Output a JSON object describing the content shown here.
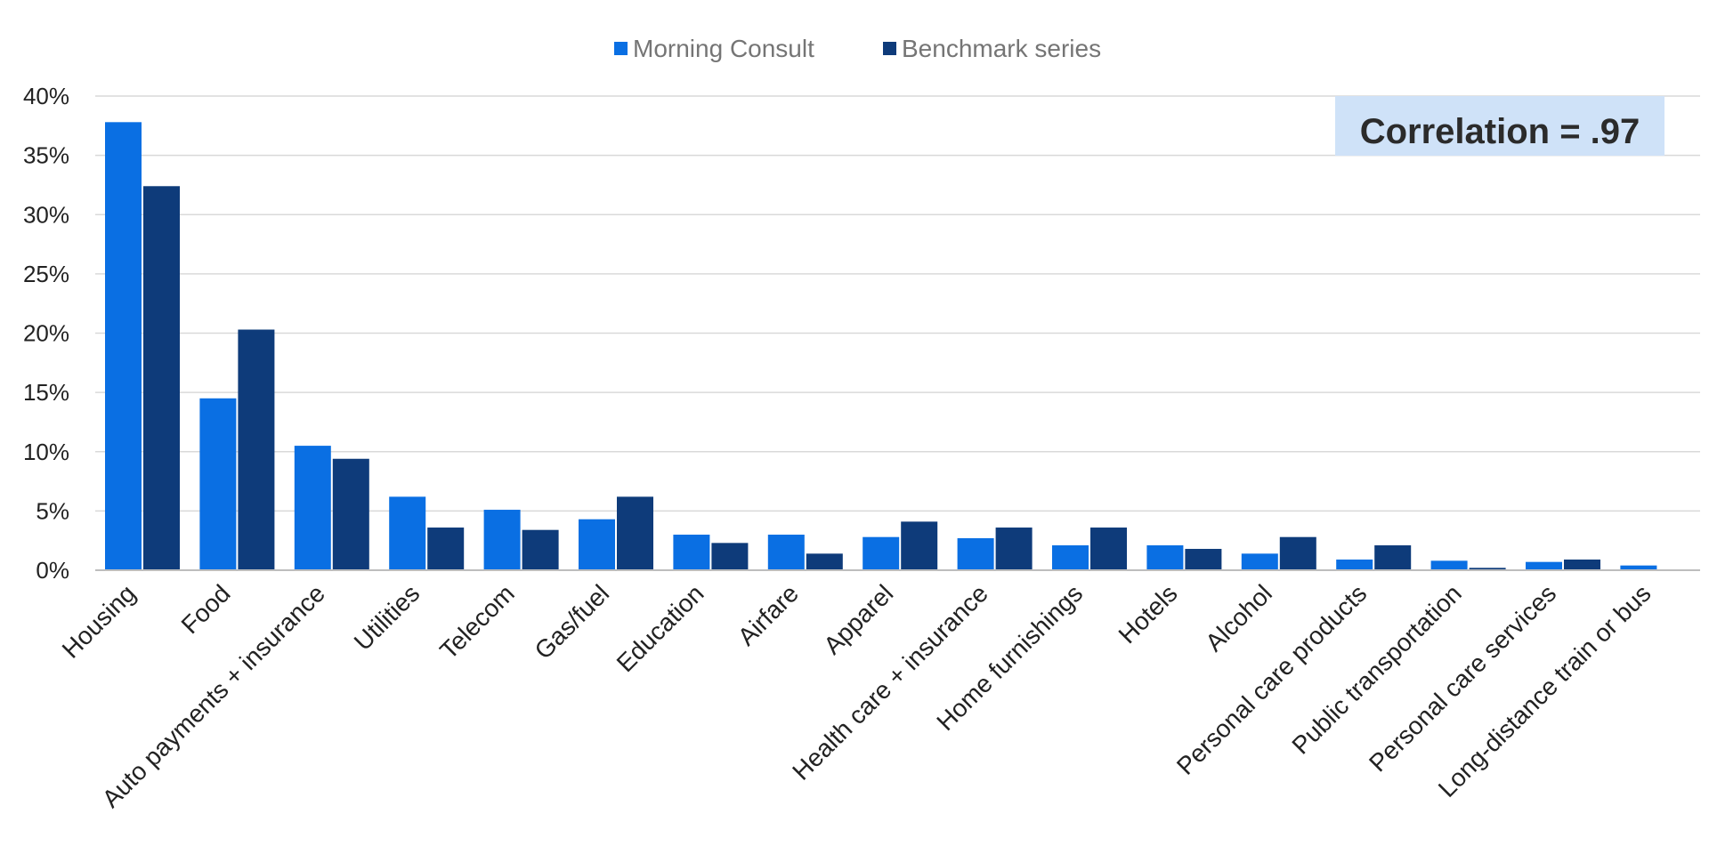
{
  "chart_data": {
    "type": "bar",
    "title": "",
    "xlabel": "",
    "ylabel": "",
    "ylim": [
      0,
      40
    ],
    "yticks": [
      0,
      5,
      10,
      15,
      20,
      25,
      30,
      35,
      40
    ],
    "ytick_labels": [
      "0%",
      "5%",
      "10%",
      "15%",
      "20%",
      "25%",
      "30%",
      "35%",
      "40%"
    ],
    "grid": true,
    "legend_position": "top-center",
    "categories": [
      "Housing",
      "Food",
      "Auto payments + insurance",
      "Utilities",
      "Telecom",
      "Gas/fuel",
      "Education",
      "Airfare",
      "Apparel",
      "Health care + insurance",
      "Home furnishings",
      "Hotels",
      "Alcohol",
      "Personal care products",
      "Public transportation",
      "Personal care services",
      "Long-distance train or bus"
    ],
    "series": [
      {
        "name": "Morning Consult",
        "color": "#0a6fe3",
        "values": [
          37.8,
          14.5,
          10.5,
          6.2,
          5.1,
          4.3,
          3.0,
          3.0,
          2.8,
          2.7,
          2.1,
          2.1,
          1.4,
          0.9,
          0.8,
          0.7,
          0.4
        ]
      },
      {
        "name": "Benchmark series",
        "color": "#0e3b7a",
        "values": [
          32.4,
          20.3,
          9.4,
          3.6,
          3.4,
          6.2,
          2.3,
          1.4,
          4.1,
          3.6,
          3.6,
          1.8,
          2.8,
          2.1,
          0.2,
          0.9,
          0.0
        ]
      }
    ],
    "annotation": {
      "text": "Correlation = .97",
      "background": "#cfe2f8"
    }
  }
}
